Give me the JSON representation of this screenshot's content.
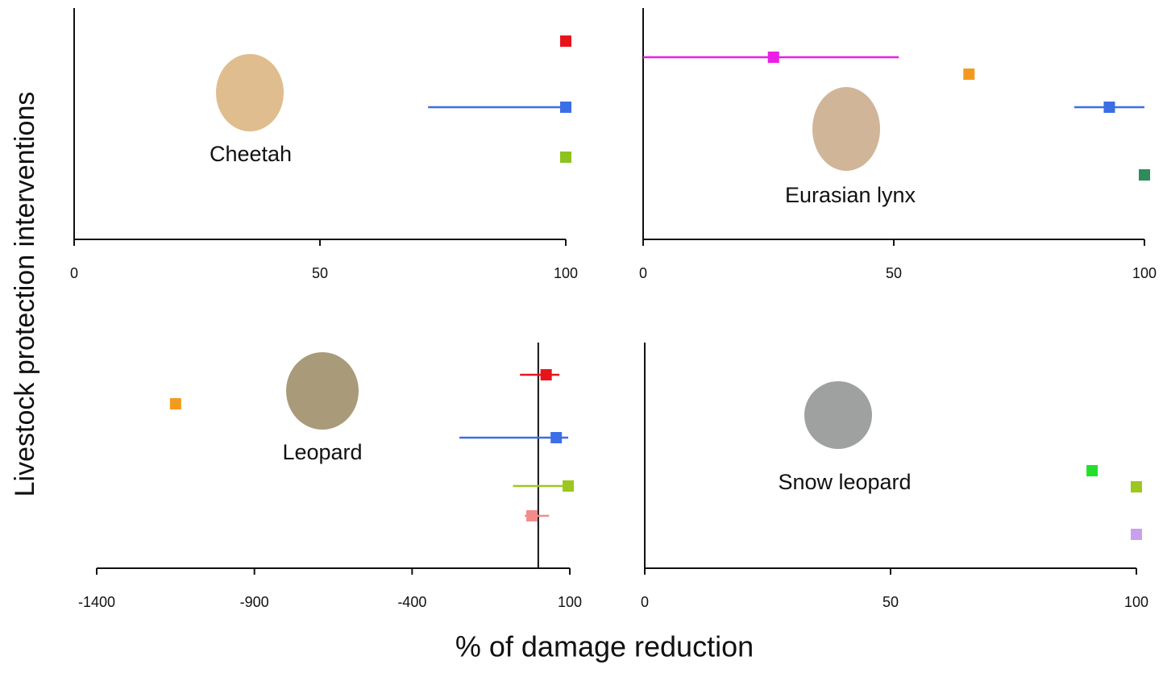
{
  "xlabel": "% of damage reduction",
  "ylabel": "Livestock protection interventions",
  "chart_data": [
    {
      "type": "dot",
      "label": "Cheetah",
      "xlim": [
        0,
        100
      ],
      "xticks": [
        0,
        50,
        100
      ],
      "points": [
        {
          "color": "#e8141c",
          "value": 100
        },
        {
          "color": "#3a6fe6",
          "value": 100,
          "ci": [
            72,
            100
          ]
        },
        {
          "color": "#8dc21f",
          "value": 100
        }
      ]
    },
    {
      "type": "dot",
      "label": "Eurasian lynx",
      "xlim": [
        0,
        100
      ],
      "xticks": [
        0,
        50,
        100
      ],
      "points": [
        {
          "color": "#ec1ee6",
          "value": 26,
          "ci": [
            0,
            51
          ]
        },
        {
          "color": "#f39a1e",
          "value": 65
        },
        {
          "color": "#3a6fe6",
          "value": 93,
          "ci": [
            86,
            100
          ]
        },
        {
          "color": "#2e8b5a",
          "value": 100
        }
      ]
    },
    {
      "type": "dot",
      "label": "Leopard",
      "xlim": [
        -1400,
        100
      ],
      "xticks": [
        -1400,
        -900,
        -400,
        100
      ],
      "y_axis_at": 0,
      "points": [
        {
          "color": "#e8141c",
          "value": 25,
          "ci": [
            -58,
            67
          ]
        },
        {
          "color": "#f39a1e",
          "value": -1150
        },
        {
          "color": "#3a6fe6",
          "value": 57,
          "ci": [
            -250,
            95
          ]
        },
        {
          "color": "#9cc71f",
          "value": 95,
          "ci": [
            -80,
            100
          ]
        },
        {
          "color": "#f28c8c",
          "value": -20,
          "ci": [
            -43,
            34
          ]
        }
      ]
    },
    {
      "type": "dot",
      "label": "Snow leopard",
      "xlim": [
        0,
        100
      ],
      "xticks": [
        0,
        50,
        100
      ],
      "points": [
        {
          "color": "#22e02a",
          "value": 91
        },
        {
          "color": "#9cc71f",
          "value": 100
        },
        {
          "color": "#c9a0ee",
          "value": 100
        }
      ]
    }
  ]
}
